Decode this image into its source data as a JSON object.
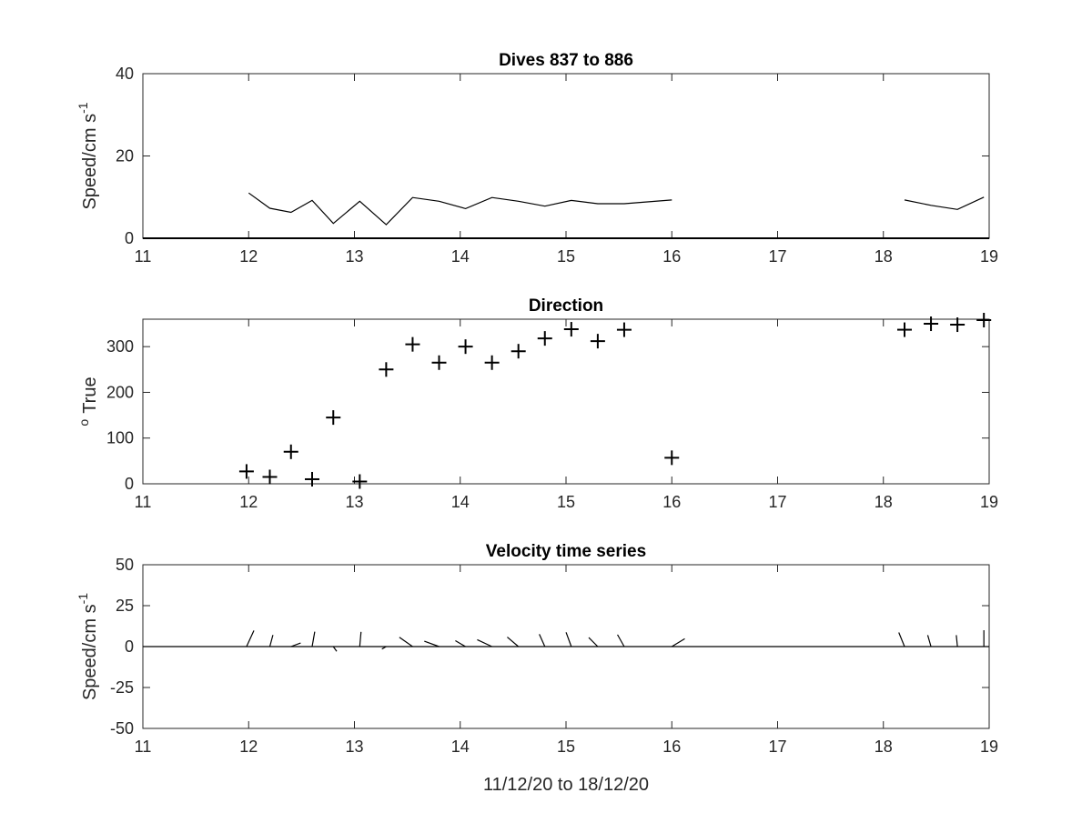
{
  "x_axis_label": "11/12/20 to 18/12/20",
  "chart_data": [
    {
      "type": "line",
      "title": "Dives 837 to 886",
      "ylabel": "Speed/cm s",
      "ylabel_superscript": "-1",
      "xlim": [
        11,
        19
      ],
      "ylim": [
        0,
        40
      ],
      "xticks": [
        11,
        12,
        13,
        14,
        15,
        16,
        17,
        18,
        19
      ],
      "yticks": [
        0,
        20,
        40
      ],
      "zero_line": true,
      "series": [
        {
          "segments": [
            [
              [
                12.0,
                11
              ],
              [
                12.2,
                7.3
              ],
              [
                12.4,
                6.3
              ],
              [
                12.6,
                9.2
              ],
              [
                12.8,
                3.6
              ],
              [
                13.05,
                9.0
              ],
              [
                13.3,
                3.3
              ],
              [
                13.55,
                9.9
              ],
              [
                13.8,
                9.0
              ],
              [
                14.05,
                7.2
              ],
              [
                14.3,
                9.9
              ],
              [
                14.55,
                9.0
              ],
              [
                14.8,
                7.8
              ],
              [
                15.05,
                9.2
              ],
              [
                15.3,
                8.4
              ],
              [
                15.55,
                8.4
              ],
              [
                16.0,
                9.3
              ]
            ],
            [
              [
                18.2,
                9.3
              ],
              [
                18.45,
                8.0
              ],
              [
                18.7,
                7.0
              ],
              [
                18.95,
                10.0
              ]
            ]
          ]
        }
      ]
    },
    {
      "type": "scatter",
      "title": "Direction",
      "ylabel": "True",
      "ylabel_prefix": "o",
      "xlim": [
        11,
        19
      ],
      "ylim": [
        0,
        360
      ],
      "xticks": [
        11,
        12,
        13,
        14,
        15,
        16,
        17,
        18,
        19
      ],
      "yticks": [
        0,
        100,
        200,
        300
      ],
      "marker": "+",
      "x": [
        11.98,
        12.2,
        12.4,
        12.6,
        12.8,
        13.05,
        13.3,
        13.55,
        13.8,
        14.05,
        14.3,
        14.55,
        14.8,
        15.05,
        15.3,
        15.55,
        16.0,
        18.2,
        18.45,
        18.7,
        18.95
      ],
      "y": [
        27,
        15,
        70,
        10,
        145,
        5,
        250,
        305,
        265,
        300,
        265,
        290,
        318,
        338,
        312,
        337,
        57,
        337,
        350,
        348,
        358
      ]
    },
    {
      "type": "line",
      "subtype": "stick-vectors",
      "title": "Velocity time series",
      "ylabel": "Speed/cm s",
      "ylabel_superscript": "-1",
      "xlim": [
        11,
        19
      ],
      "ylim": [
        -50,
        50
      ],
      "xticks": [
        11,
        12,
        13,
        14,
        15,
        16,
        17,
        18,
        19
      ],
      "yticks": [
        -50,
        -25,
        0,
        25,
        50
      ],
      "zero_line": true,
      "sticks": [
        {
          "x": 11.98,
          "u": 4.5,
          "v": 9.8
        },
        {
          "x": 12.2,
          "u": 1.9,
          "v": 7.1
        },
        {
          "x": 12.4,
          "u": 5.9,
          "v": 2.2
        },
        {
          "x": 12.6,
          "u": 1.6,
          "v": 9.1
        },
        {
          "x": 12.8,
          "u": 2.1,
          "v": -2.9
        },
        {
          "x": 13.05,
          "u": 0.8,
          "v": 9.0
        },
        {
          "x": 13.3,
          "u": -2.6,
          "v": -1.5
        },
        {
          "x": 13.55,
          "u": -8.1,
          "v": 5.7
        },
        {
          "x": 13.8,
          "u": -9.0,
          "v": 3.3
        },
        {
          "x": 14.05,
          "u": -6.2,
          "v": 3.6
        },
        {
          "x": 14.3,
          "u": -9.0,
          "v": 4.2
        },
        {
          "x": 14.55,
          "u": -6.8,
          "v": 5.8
        },
        {
          "x": 14.8,
          "u": -3.4,
          "v": 7.6
        },
        {
          "x": 15.05,
          "u": -3.2,
          "v": 8.7
        },
        {
          "x": 15.3,
          "u": -5.5,
          "v": 5.5
        },
        {
          "x": 15.55,
          "u": -4.1,
          "v": 7.3
        },
        {
          "x": 16.0,
          "u": 7.9,
          "v": 4.8
        },
        {
          "x": 18.2,
          "u": -3.5,
          "v": 8.6
        },
        {
          "x": 18.45,
          "u": -2.0,
          "v": 7.0
        },
        {
          "x": 18.7,
          "u": -0.7,
          "v": 7.0
        },
        {
          "x": 18.95,
          "u": 0.0,
          "v": 10.0
        }
      ]
    }
  ]
}
